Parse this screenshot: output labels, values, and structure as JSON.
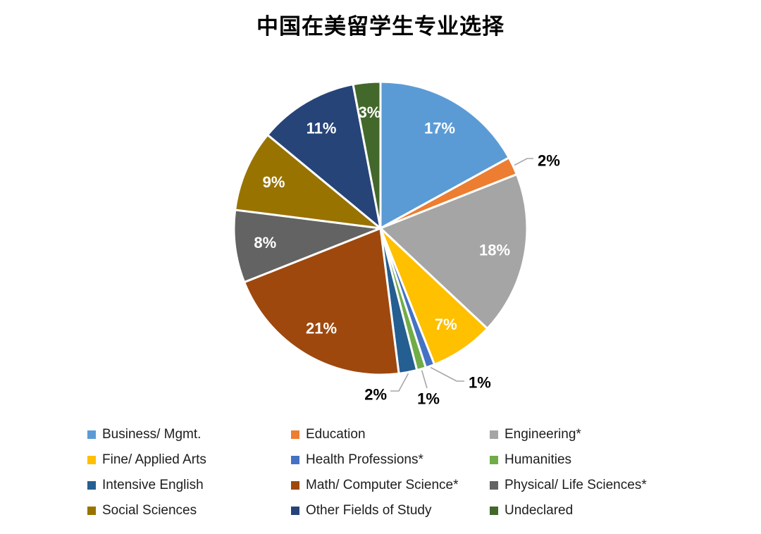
{
  "title": "中国在美留学生专业选择",
  "chart_data": {
    "type": "pie",
    "title": "中国在美留学生专业选择",
    "unit": "percent",
    "total": 100,
    "start_angle_deg": 0,
    "direction": "clockwise",
    "legend_position": "bottom",
    "legend_columns": 3,
    "label_color_inside": "#FFFFFF",
    "label_color_outside": "#000000",
    "leader_line_color": "#A6A6A6",
    "slice_border_color": "#FFFFFF",
    "slices": [
      {
        "label": "Business/ Mgmt.",
        "value": 17,
        "data_label": "17%",
        "color": "#5B9BD5",
        "label_placement": "inside"
      },
      {
        "label": "Education",
        "value": 2,
        "data_label": "2%",
        "color": "#ED7D31",
        "label_placement": "outside"
      },
      {
        "label": "Engineering*",
        "value": 18,
        "data_label": "18%",
        "color": "#A5A5A5",
        "label_placement": "inside"
      },
      {
        "label": "Fine/ Applied Arts",
        "value": 7,
        "data_label": "7%",
        "color": "#FFC000",
        "label_placement": "inside"
      },
      {
        "label": "Health Professions*",
        "value": 1,
        "data_label": "1%",
        "color": "#4472C4",
        "label_placement": "outside"
      },
      {
        "label": "Humanities",
        "value": 1,
        "data_label": "1%",
        "color": "#70AD47",
        "label_placement": "outside"
      },
      {
        "label": "Intensive English",
        "value": 2,
        "data_label": "2%",
        "color": "#255E91",
        "label_placement": "outside"
      },
      {
        "label": "Math/ Computer Science*",
        "value": 21,
        "data_label": "21%",
        "color": "#9E480E",
        "label_placement": "inside"
      },
      {
        "label": "Physical/ Life Sciences*",
        "value": 8,
        "data_label": "8%",
        "color": "#636363",
        "label_placement": "inside"
      },
      {
        "label": "Social Sciences",
        "value": 9,
        "data_label": "9%",
        "color": "#997300",
        "label_placement": "inside"
      },
      {
        "label": "Other Fields of Study",
        "value": 11,
        "data_label": "11%",
        "color": "#264478",
        "label_placement": "inside"
      },
      {
        "label": "Undeclared",
        "value": 3,
        "data_label": "3%",
        "color": "#43682B",
        "label_placement": "inside"
      }
    ]
  }
}
